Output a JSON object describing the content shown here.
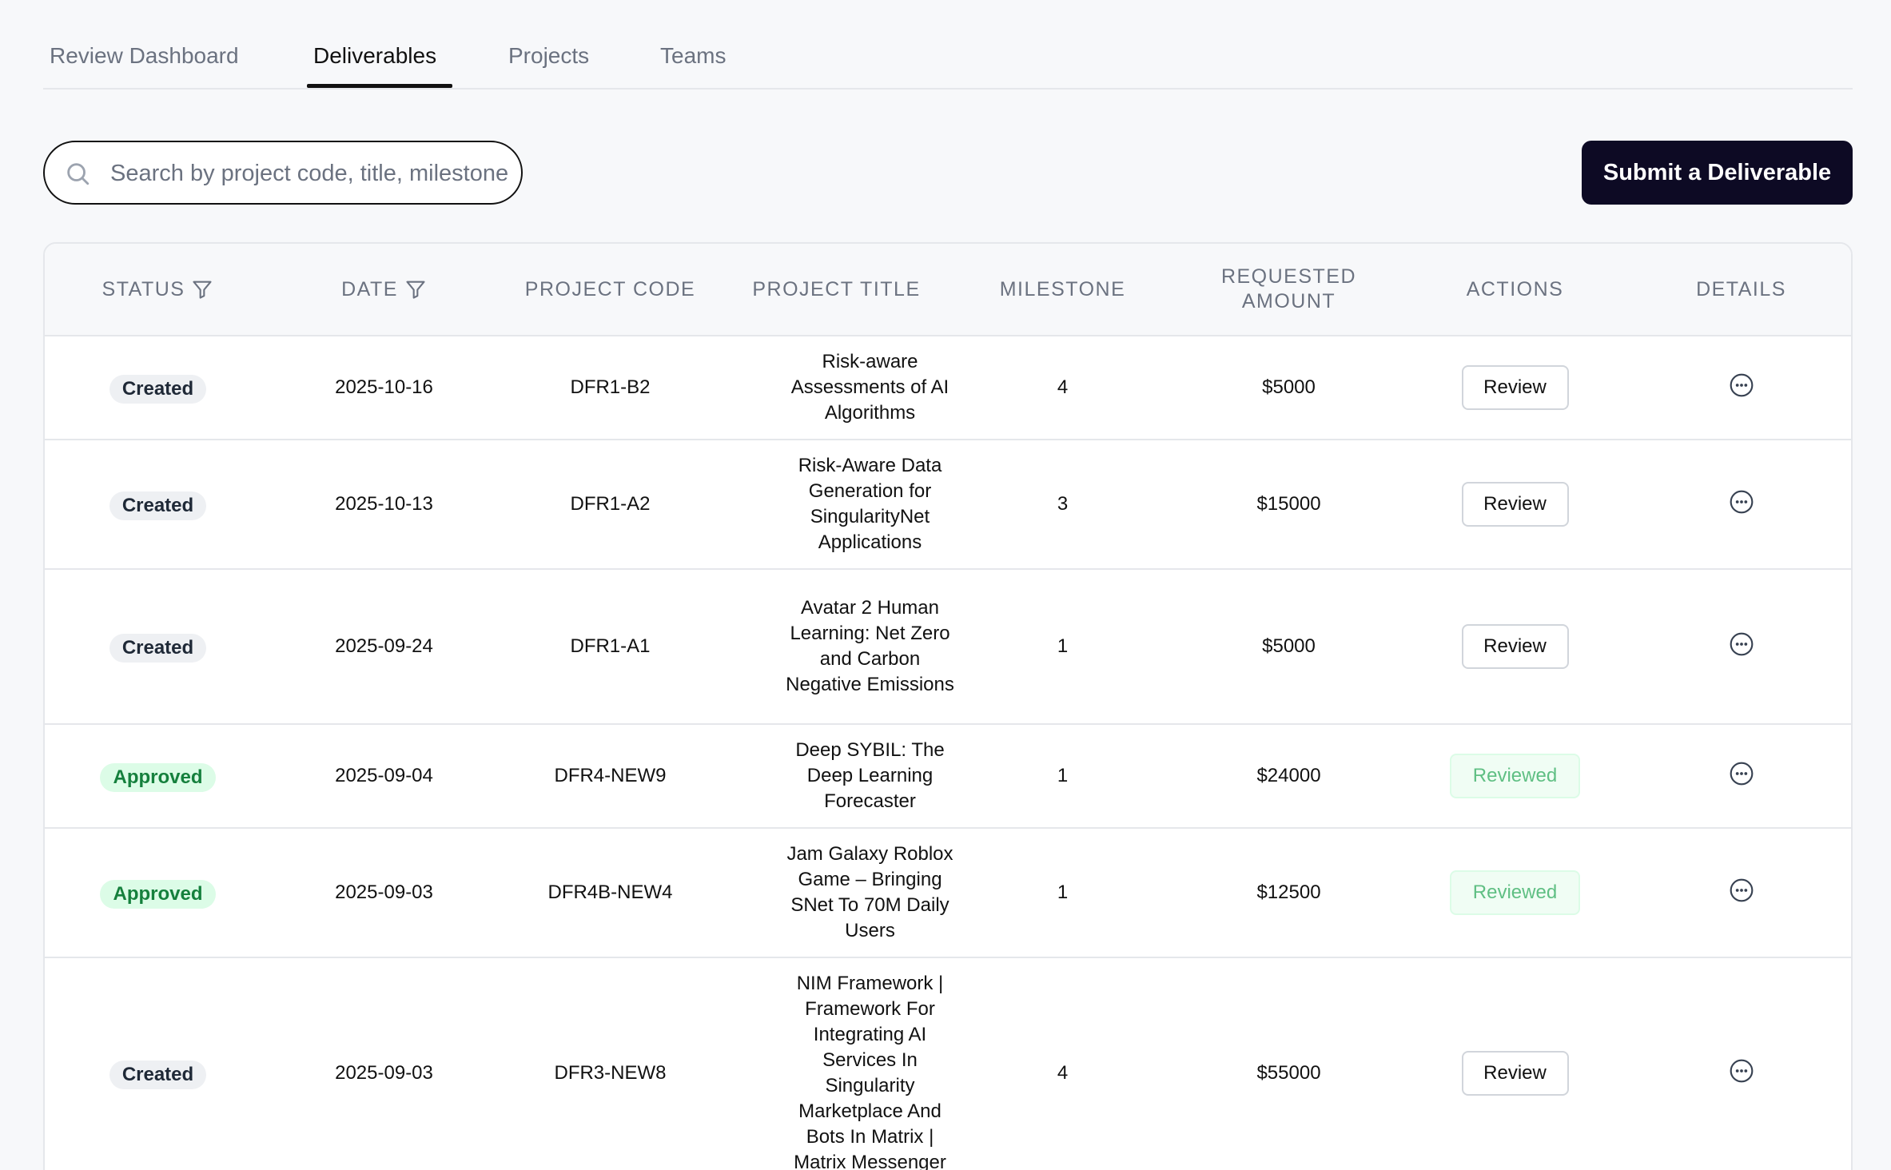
{
  "tabs": [
    {
      "label": "Review Dashboard",
      "active": false
    },
    {
      "label": "Deliverables",
      "active": true
    },
    {
      "label": "Projects",
      "active": false
    },
    {
      "label": "Teams",
      "active": false
    }
  ],
  "search": {
    "placeholder": "Search by project code, title, milestone",
    "value": ""
  },
  "submit_button": {
    "label": "Submit a Deliverable"
  },
  "table": {
    "headers": {
      "status": "STATUS",
      "date": "DATE",
      "project_code": "PROJECT CODE",
      "project_title": "PROJECT TITLE",
      "milestone": "MILESTONE",
      "requested_amount": "REQUESTED AMOUNT",
      "actions": "ACTIONS",
      "details": "DETAILS"
    },
    "rows": [
      {
        "status": "Created",
        "date": "2025-10-16",
        "project_code": "DFR1-B2",
        "project_title": "Risk-aware Assessments of AI Algorithms",
        "milestone": "4",
        "requested_amount": "$5000",
        "action": "Review"
      },
      {
        "status": "Created",
        "date": "2025-10-13",
        "project_code": "DFR1-A2",
        "project_title": "Risk-Aware Data Generation for SingularityNet Applications",
        "milestone": "3",
        "requested_amount": "$15000",
        "action": "Review"
      },
      {
        "status": "Created",
        "date": "2025-09-24",
        "project_code": "DFR1-A1",
        "project_title": "Avatar 2 Human Learning: Net Zero and Carbon Negative Emissions",
        "milestone": "1",
        "requested_amount": "$5000",
        "action": "Review"
      },
      {
        "status": "Approved",
        "date": "2025-09-04",
        "project_code": "DFR4-NEW9",
        "project_title": "Deep SYBIL: The Deep Learning Forecaster",
        "milestone": "1",
        "requested_amount": "$24000",
        "action": "Reviewed"
      },
      {
        "status": "Approved",
        "date": "2025-09-03",
        "project_code": "DFR4B-NEW4",
        "project_title": "Jam Galaxy Roblox Game – Bringing SNet To 70M Daily Users",
        "milestone": "1",
        "requested_amount": "$12500",
        "action": "Reviewed"
      },
      {
        "status": "Created",
        "date": "2025-09-03",
        "project_code": "DFR3-NEW8",
        "project_title": "NIM Framework | Framework For Integrating AI Services In Singularity Marketplace And Bots In Matrix | Matrix Messenger",
        "milestone": "4",
        "requested_amount": "$55000",
        "action": "Review"
      }
    ]
  },
  "icons": {
    "search": "search-icon",
    "filter": "filter-icon",
    "details": "more-horizontal-circle-icon"
  },
  "colors": {
    "primary_button": "#0d0a24",
    "approved_badge_bg": "#dcfce7",
    "approved_badge_text": "#15803d",
    "created_badge_bg": "#eef0f3",
    "reviewed_text": "#5fbf83"
  }
}
